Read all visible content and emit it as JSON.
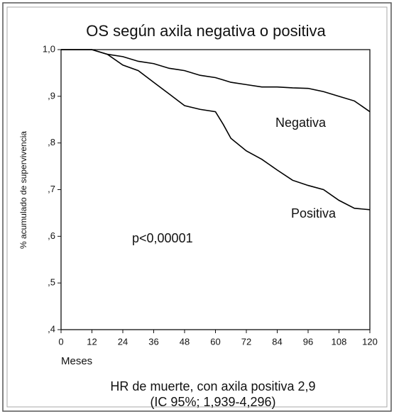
{
  "chart_data": {
    "type": "line",
    "title": "OS según axila negativa o positiva",
    "y_label": "% acumulado de supervivencia",
    "x_label": "Meses",
    "annotations": [
      "Negativa",
      "Positiva",
      "p<0,00001"
    ],
    "notes": [
      "HR de muerte, con axila positiva 2,9",
      "(IC 95%; 1,939-4,296)"
    ],
    "x": [
      0,
      12,
      18,
      24,
      30,
      36,
      42,
      48,
      54,
      60,
      63,
      66,
      72,
      78,
      84,
      90,
      96,
      102,
      108,
      114,
      120
    ],
    "series": [
      {
        "name": "Negativa",
        "color": "#000000",
        "values": [
          1.0,
          1.0,
          0.99,
          0.985,
          0.975,
          0.97,
          0.96,
          0.955,
          0.945,
          0.94,
          0.935,
          0.93,
          0.925,
          0.92,
          0.92,
          0.918,
          0.917,
          0.91,
          0.9,
          0.89,
          0.867
        ]
      },
      {
        "name": "Positiva",
        "color": "#000000",
        "values": [
          1.0,
          1.0,
          0.99,
          0.967,
          0.955,
          0.93,
          0.905,
          0.88,
          0.872,
          0.867,
          0.84,
          0.81,
          0.783,
          0.765,
          0.742,
          0.72,
          0.709,
          0.7,
          0.677,
          0.66,
          0.657
        ]
      }
    ],
    "xlim": [
      0,
      120
    ],
    "ylim": [
      0.4,
      1.0
    ],
    "xticks": [
      0,
      12,
      24,
      36,
      48,
      60,
      72,
      84,
      96,
      108,
      120
    ],
    "yticks": [
      {
        "value": 1.0,
        "label": "1,0"
      },
      {
        "value": 0.9,
        "label": ",9"
      },
      {
        "value": 0.8,
        "label": ",8"
      },
      {
        "value": 0.7,
        "label": ",7"
      },
      {
        "value": 0.6,
        "label": ",6"
      },
      {
        "value": 0.5,
        "label": ",5"
      },
      {
        "value": 0.4,
        "label": ",4"
      }
    ],
    "grid": false
  }
}
